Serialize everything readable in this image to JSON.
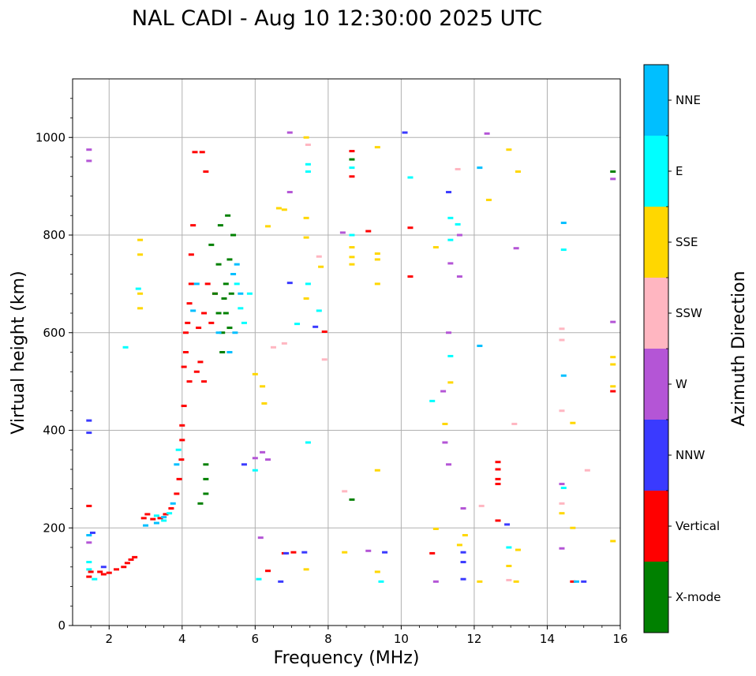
{
  "chart_data": {
    "type": "scatter",
    "title": "NAL CADI - Aug 10 12:30:00 2025 UTC",
    "xlabel": "Frequency (MHz)",
    "ylabel": "Virtual height (km)",
    "xlim": [
      1,
      16
    ],
    "ylim": [
      0,
      1120
    ],
    "xticks": [
      2,
      4,
      6,
      8,
      10,
      12,
      14,
      16
    ],
    "yticks": [
      0,
      200,
      400,
      600,
      800,
      1000
    ],
    "grid": true,
    "colorbar": {
      "title": "Azimuth Direction",
      "categories": [
        {
          "name": "X-mode",
          "color": "#008000"
        },
        {
          "name": "Vertical",
          "color": "#ff0000"
        },
        {
          "name": "NNW",
          "color": "#3a3aff"
        },
        {
          "name": "W",
          "color": "#b455d6"
        },
        {
          "name": "SSW",
          "color": "#ffb6c1"
        },
        {
          "name": "SSE",
          "color": "#ffd700"
        },
        {
          "name": "E",
          "color": "#00ffff"
        },
        {
          "name": "NNE",
          "color": "#00bfff"
        }
      ]
    },
    "series": [
      {
        "name": "Vertical",
        "points": [
          [
            1.45,
            100
          ],
          [
            1.5,
            110
          ],
          [
            1.45,
            245
          ],
          [
            1.75,
            110
          ],
          [
            1.85,
            105
          ],
          [
            2.0,
            108
          ],
          [
            2.2,
            115
          ],
          [
            2.4,
            120
          ],
          [
            2.5,
            128
          ],
          [
            2.6,
            135
          ],
          [
            2.7,
            140
          ],
          [
            2.95,
            220
          ],
          [
            3.05,
            228
          ],
          [
            3.2,
            218
          ],
          [
            3.4,
            220
          ],
          [
            3.55,
            228
          ],
          [
            3.7,
            240
          ],
          [
            3.85,
            270
          ],
          [
            3.92,
            300
          ],
          [
            3.98,
            340
          ],
          [
            4.0,
            380
          ],
          [
            4.0,
            410
          ],
          [
            4.05,
            450
          ],
          [
            4.05,
            530
          ],
          [
            4.1,
            560
          ],
          [
            4.15,
            620
          ],
          [
            4.2,
            660
          ],
          [
            4.25,
            700
          ],
          [
            4.25,
            760
          ],
          [
            4.3,
            820
          ],
          [
            4.35,
            970
          ],
          [
            4.55,
            970
          ],
          [
            4.4,
            520
          ],
          [
            4.5,
            540
          ],
          [
            4.6,
            640
          ],
          [
            4.7,
            700
          ],
          [
            4.8,
            620
          ],
          [
            4.9,
            680
          ],
          [
            4.45,
            610
          ],
          [
            4.6,
            500
          ],
          [
            4.2,
            500
          ],
          [
            4.1,
            600
          ],
          [
            4.65,
            930
          ],
          [
            6.35,
            112
          ],
          [
            6.8,
            148
          ],
          [
            7.05,
            150
          ],
          [
            7.9,
            602
          ],
          [
            8.65,
            972
          ],
          [
            8.65,
            920
          ],
          [
            9.1,
            808
          ],
          [
            10.25,
            815
          ],
          [
            10.25,
            715
          ],
          [
            10.85,
            148
          ],
          [
            12.65,
            215
          ],
          [
            12.65,
            300
          ],
          [
            12.65,
            320
          ],
          [
            12.65,
            335
          ],
          [
            12.65,
            290
          ],
          [
            14.7,
            90
          ],
          [
            15.8,
            480
          ]
        ]
      },
      {
        "name": "X-mode",
        "points": [
          [
            4.5,
            250
          ],
          [
            4.65,
            330
          ],
          [
            4.65,
            300
          ],
          [
            4.65,
            270
          ],
          [
            4.9,
            680
          ],
          [
            5.0,
            640
          ],
          [
            5.1,
            600
          ],
          [
            5.2,
            700
          ],
          [
            5.3,
            750
          ],
          [
            5.4,
            800
          ],
          [
            5.0,
            740
          ],
          [
            5.2,
            640
          ],
          [
            5.3,
            610
          ],
          [
            5.05,
            820
          ],
          [
            5.25,
            840
          ],
          [
            4.8,
            780
          ],
          [
            5.15,
            670
          ],
          [
            5.35,
            680
          ],
          [
            5.1,
            560
          ],
          [
            8.65,
            258
          ],
          [
            8.65,
            955
          ],
          [
            15.8,
            930
          ]
        ]
      },
      {
        "name": "NNW",
        "points": [
          [
            1.45,
            420
          ],
          [
            1.45,
            395
          ],
          [
            1.55,
            190
          ],
          [
            5.7,
            330
          ],
          [
            6.7,
            90
          ],
          [
            6.85,
            148
          ],
          [
            7.35,
            150
          ],
          [
            6.95,
            702
          ],
          [
            7.65,
            612
          ],
          [
            9.55,
            150
          ],
          [
            10.1,
            1010
          ],
          [
            11.7,
            150
          ],
          [
            11.7,
            130
          ],
          [
            11.7,
            95
          ],
          [
            11.3,
            888
          ],
          [
            12.9,
            207
          ],
          [
            15.0,
            90
          ],
          [
            1.85,
            120
          ]
        ]
      },
      {
        "name": "W",
        "points": [
          [
            1.45,
            975
          ],
          [
            1.45,
            952
          ],
          [
            1.45,
            170
          ],
          [
            6.0,
            343
          ],
          [
            6.15,
            180
          ],
          [
            6.2,
            355
          ],
          [
            6.35,
            340
          ],
          [
            6.95,
            1010
          ],
          [
            6.95,
            888
          ],
          [
            8.4,
            805
          ],
          [
            9.1,
            153
          ],
          [
            11.15,
            480
          ],
          [
            11.2,
            375
          ],
          [
            11.3,
            330
          ],
          [
            11.35,
            742
          ],
          [
            11.7,
            240
          ],
          [
            11.6,
            800
          ],
          [
            11.6,
            715
          ],
          [
            11.3,
            600
          ],
          [
            12.35,
            1008
          ],
          [
            13.15,
            773
          ],
          [
            14.4,
            290
          ],
          [
            14.4,
            158
          ],
          [
            15.8,
            622
          ],
          [
            15.8,
            915
          ],
          [
            10.95,
            90
          ]
        ]
      },
      {
        "name": "SSW",
        "points": [
          [
            6.5,
            570
          ],
          [
            6.8,
            578
          ],
          [
            7.75,
            756
          ],
          [
            7.9,
            545
          ],
          [
            8.45,
            275
          ],
          [
            12.2,
            245
          ],
          [
            12.95,
            93
          ],
          [
            13.1,
            413
          ],
          [
            14.4,
            608
          ],
          [
            14.4,
            585
          ],
          [
            14.4,
            440
          ],
          [
            14.4,
            250
          ],
          [
            15.1,
            318
          ],
          [
            7.45,
            985
          ],
          [
            11.55,
            935
          ]
        ]
      },
      {
        "name": "SSE",
        "points": [
          [
            2.85,
            790
          ],
          [
            2.85,
            760
          ],
          [
            2.85,
            680
          ],
          [
            2.85,
            650
          ],
          [
            6.0,
            515
          ],
          [
            6.2,
            490
          ],
          [
            6.25,
            455
          ],
          [
            6.35,
            818
          ],
          [
            6.65,
            855
          ],
          [
            6.8,
            852
          ],
          [
            7.4,
            1000
          ],
          [
            7.4,
            835
          ],
          [
            7.4,
            795
          ],
          [
            7.4,
            670
          ],
          [
            7.4,
            115
          ],
          [
            7.8,
            735
          ],
          [
            8.45,
            150
          ],
          [
            8.65,
            775
          ],
          [
            8.65,
            755
          ],
          [
            8.65,
            740
          ],
          [
            9.35,
            980
          ],
          [
            9.35,
            762
          ],
          [
            9.35,
            750
          ],
          [
            9.35,
            700
          ],
          [
            9.35,
            318
          ],
          [
            9.35,
            110
          ],
          [
            10.95,
            775
          ],
          [
            10.95,
            198
          ],
          [
            11.2,
            413
          ],
          [
            11.35,
            498
          ],
          [
            11.75,
            185
          ],
          [
            11.6,
            165
          ],
          [
            12.15,
            90
          ],
          [
            12.4,
            872
          ],
          [
            12.95,
            975
          ],
          [
            12.95,
            122
          ],
          [
            13.2,
            930
          ],
          [
            13.2,
            155
          ],
          [
            13.15,
            90
          ],
          [
            14.7,
            415
          ],
          [
            14.7,
            200
          ],
          [
            14.4,
            230
          ],
          [
            15.8,
            550
          ],
          [
            15.8,
            535
          ],
          [
            15.8,
            490
          ],
          [
            15.8,
            173
          ]
        ]
      },
      {
        "name": "E",
        "points": [
          [
            1.45,
            115
          ],
          [
            1.6,
            95
          ],
          [
            2.45,
            570
          ],
          [
            2.8,
            690
          ],
          [
            3.3,
            225
          ],
          [
            3.5,
            215
          ],
          [
            3.65,
            230
          ],
          [
            3.9,
            360
          ],
          [
            5.5,
            700
          ],
          [
            5.6,
            650
          ],
          [
            5.7,
            620
          ],
          [
            5.85,
            680
          ],
          [
            6.0,
            318
          ],
          [
            6.1,
            95
          ],
          [
            7.15,
            618
          ],
          [
            7.45,
            945
          ],
          [
            7.45,
            930
          ],
          [
            7.45,
            700
          ],
          [
            7.45,
            375
          ],
          [
            7.75,
            645
          ],
          [
            8.65,
            938
          ],
          [
            8.65,
            800
          ],
          [
            9.45,
            90
          ],
          [
            10.25,
            918
          ],
          [
            10.85,
            460
          ],
          [
            11.35,
            835
          ],
          [
            11.35,
            790
          ],
          [
            11.35,
            552
          ],
          [
            11.55,
            822
          ],
          [
            12.95,
            160
          ],
          [
            14.45,
            770
          ],
          [
            14.45,
            282
          ],
          [
            1.45,
            130
          ]
        ]
      },
      {
        "name": "NNE",
        "points": [
          [
            1.45,
            185
          ],
          [
            3.0,
            205
          ],
          [
            3.3,
            210
          ],
          [
            3.5,
            222
          ],
          [
            3.75,
            250
          ],
          [
            3.85,
            330
          ],
          [
            4.3,
            645
          ],
          [
            4.4,
            700
          ],
          [
            5.4,
            720
          ],
          [
            5.5,
            740
          ],
          [
            5.6,
            680
          ],
          [
            5.45,
            600
          ],
          [
            5.3,
            560
          ],
          [
            12.15,
            573
          ],
          [
            12.15,
            938
          ],
          [
            14.45,
            825
          ],
          [
            14.45,
            512
          ],
          [
            14.8,
            90
          ],
          [
            5.0,
            600
          ]
        ]
      }
    ]
  }
}
